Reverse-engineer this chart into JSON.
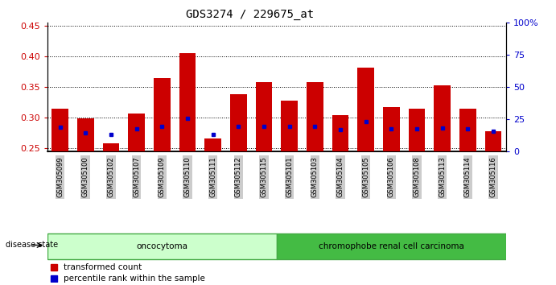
{
  "title": "GDS3274 / 229675_at",
  "samples": [
    "GSM305099",
    "GSM305100",
    "GSM305102",
    "GSM305107",
    "GSM305109",
    "GSM305110",
    "GSM305111",
    "GSM305112",
    "GSM305115",
    "GSM305101",
    "GSM305103",
    "GSM305104",
    "GSM305105",
    "GSM305106",
    "GSM305108",
    "GSM305113",
    "GSM305114",
    "GSM305116"
  ],
  "transformed_count": [
    0.315,
    0.298,
    0.258,
    0.307,
    0.365,
    0.405,
    0.265,
    0.338,
    0.358,
    0.328,
    0.358,
    0.304,
    0.382,
    0.317,
    0.314,
    0.352,
    0.315,
    0.278
  ],
  "percentile_rank": [
    0.284,
    0.275,
    0.272,
    0.281,
    0.286,
    0.298,
    0.272,
    0.286,
    0.286,
    0.285,
    0.285,
    0.28,
    0.293,
    0.281,
    0.281,
    0.283,
    0.281,
    0.278
  ],
  "ylim_left": [
    0.245,
    0.455
  ],
  "ylim_right": [
    0,
    100
  ],
  "yticks_left": [
    0.25,
    0.3,
    0.35,
    0.4,
    0.45
  ],
  "yticks_right": [
    0,
    25,
    50,
    75,
    100
  ],
  "bar_color": "#cc0000",
  "marker_color": "#0000cc",
  "bar_width": 0.65,
  "background_color": "#ffffff",
  "plot_bg_color": "#ffffff",
  "disease_groups": [
    {
      "label": "oncocytoma",
      "start": 0,
      "end": 9,
      "color": "#ccffcc",
      "edge": "#44aa44"
    },
    {
      "label": "chromophobe renal cell carcinoma",
      "start": 9,
      "end": 18,
      "color": "#44bb44",
      "edge": "#44aa44"
    }
  ],
  "disease_state_label": "disease state",
  "legend_items": [
    {
      "label": "transformed count",
      "color": "#cc0000"
    },
    {
      "label": "percentile rank within the sample",
      "color": "#0000cc"
    }
  ],
  "title_fontsize": 10,
  "axis_label_color_left": "#cc0000",
  "axis_label_color_right": "#0000cc",
  "tick_label_bg": "#cccccc"
}
